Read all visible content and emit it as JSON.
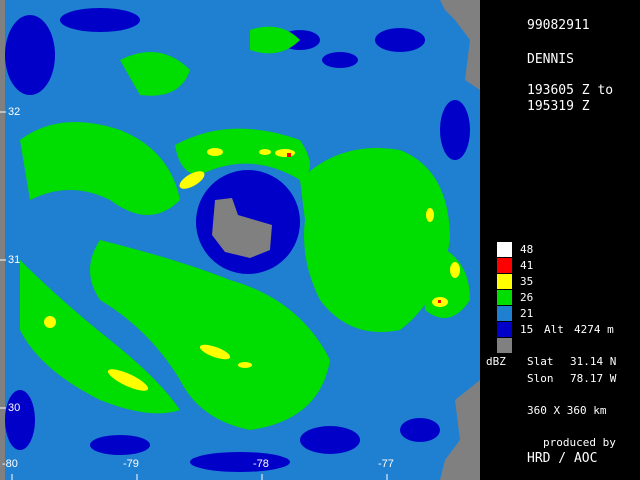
{
  "header": {
    "date_code": "99082911",
    "storm_name": "DENNIS",
    "time_from": "193605 Z to",
    "time_to": "195319 Z"
  },
  "legend": {
    "levels": [
      {
        "label": "48",
        "color": "#ffffff"
      },
      {
        "label": "41",
        "color": "#ff0000"
      },
      {
        "label": "35",
        "color": "#ffff00"
      },
      {
        "label": "26",
        "color": "#00dd00"
      },
      {
        "label": "21",
        "color": "#1f7fd0"
      },
      {
        "label": "15",
        "color": "#0000c8"
      },
      {
        "label": "",
        "color": "#808080"
      }
    ],
    "unit": "dBZ",
    "alt_label": "Alt",
    "alt_value": "4274 m"
  },
  "position": {
    "slat_label": "Slat",
    "slat_value": "31.14 N",
    "slon_label": "Slon",
    "slon_value": "78.17 W"
  },
  "domain_size": "360 X 360 km",
  "credits": {
    "produced_by": "produced by",
    "org": "HRD / AOC"
  },
  "map": {
    "lat_ticks": [
      "32",
      "31",
      "30"
    ],
    "lon_ticks": [
      "-80",
      "-79",
      "-78",
      "-77"
    ],
    "colors": {
      "background": "#1f7fd0",
      "land": "#808080",
      "low": "#0000c8",
      "moderate": "#00dd00",
      "high": "#ffff00",
      "max": "#ff0000"
    }
  }
}
